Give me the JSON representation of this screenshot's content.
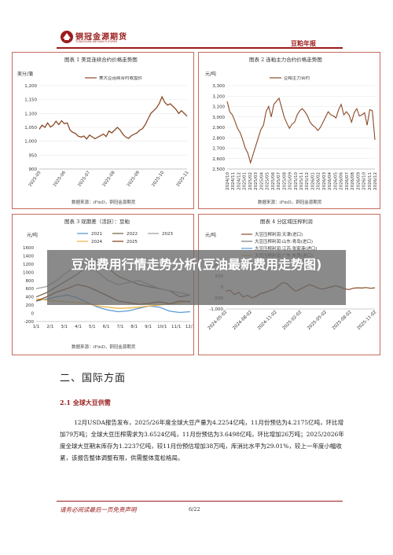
{
  "header": {
    "company_cn": "铜冠金源期货",
    "company_en": "TONGGUAN JINYUAN FUTURES",
    "report_type": "豆粕年报"
  },
  "overlay_title": "豆油费用行情走势分析(豆油最新费用走势图)",
  "colors": {
    "brand": "#9b1c1c",
    "series_brown": "#8a4a26",
    "panel_border": "#c46b5c"
  },
  "panels": [
    {
      "title": "图表 1 美豆连续合约价格走势图",
      "source": "数据来源：iFinD，铜冠金源期货",
      "unit": "美分/蒲"
    },
    {
      "title": "图表 2 连粕主力合约价格走势图",
      "source": "数据来源：iFinD，铜冠金源期货",
      "unit": "元/吨"
    },
    {
      "title": "图表 3 现期差（活跃）：豆粕",
      "source": "数据来源：iFinD，铜冠金源期货",
      "unit": "元/吨"
    },
    {
      "title": "图表 4 分区域压榨利润",
      "source": "数据来源：iFinD，铜冠金源期货",
      "unit": "元/吨"
    }
  ],
  "chart_data": [
    {
      "type": "line",
      "title": "图表 1 美豆连续合约价格走势图",
      "ylabel": "美分/蒲",
      "ylim": [
        900,
        1200
      ],
      "yticks": [
        "900",
        "950",
        "1,000",
        "1,050",
        "1,100",
        "1,150",
        "1,200"
      ],
      "xticks": [
        "2025-05",
        "2025-06",
        "2025-07",
        "2025-08",
        "2025-09",
        "2025-10",
        "2025-11"
      ],
      "series": [
        {
          "name": "美大豆连续合约收盘价",
          "color": "#8a4a26",
          "values": [
            1043,
            1058,
            1050,
            1066,
            1051,
            1058,
            1072,
            1060,
            1074,
            1063,
            1066,
            1041,
            1032,
            1028,
            1018,
            1015,
            1019,
            1008,
            1022,
            1016,
            1009,
            1015,
            1020,
            1026,
            1017,
            1037,
            1030,
            1040,
            1050,
            1040,
            1025,
            1015,
            1010,
            1020,
            1025,
            1030,
            1040,
            1045,
            1060,
            1080,
            1100,
            1110,
            1120,
            1135,
            1160,
            1140,
            1130,
            1135,
            1125,
            1115,
            1100,
            1110,
            1100,
            1090
          ]
        }
      ]
    },
    {
      "type": "line",
      "title": "图表 2 连粕主力合约价格走势图",
      "ylabel": "元/吨",
      "ylim": [
        2500,
        3300
      ],
      "yticks": [
        "2,500",
        "2,600",
        "2,700",
        "2,800",
        "2,900",
        "3,000",
        "3,100",
        "3,200",
        "3,300"
      ],
      "xticks": [
        "2024/10",
        "2024/11",
        "2024/12",
        "2025/01",
        "2025/02",
        "2025/03",
        "2025/04",
        "2025/05",
        "2025/06",
        "2025/07",
        "2025/08",
        "2025/09",
        "2025/10",
        "2025/11",
        "2025/12",
        "2026/01",
        "2026/02",
        "2026/03",
        "2026/04",
        "2026/05",
        "2026/06",
        "2026/07",
        "2026/08",
        "2026/09",
        "2026/10",
        "2026/11",
        "2026/12"
      ],
      "series": [
        {
          "name": "豆粕主力合约",
          "color": "#8a4a26",
          "values": [
            3150,
            3050,
            3020,
            2960,
            2890,
            2850,
            2780,
            2700,
            2650,
            2560,
            2640,
            2720,
            2800,
            2880,
            2920,
            3050,
            3100,
            3000,
            3120,
            3150,
            3180,
            3090,
            3000,
            2940,
            2890,
            2930,
            2950,
            3020,
            3060,
            3080,
            3050,
            3010,
            2950,
            2920,
            2900,
            2870,
            2900,
            2950,
            3000,
            3050,
            3020,
            3010,
            2990,
            3070,
            3120,
            3020,
            3050,
            3020,
            2950,
            3040,
            3080,
            3010,
            3020,
            3040,
            2920,
            3070,
            3060,
            2780
          ]
        }
      ]
    },
    {
      "type": "line",
      "title": "图表 3 现期差（活跃）：豆粕",
      "ylabel": "元/吨",
      "ylim": [
        -200,
        1600
      ],
      "yticks": [
        "-200",
        "0",
        "200",
        "400",
        "600",
        "800",
        "1000",
        "1200",
        "1400",
        "1600"
      ],
      "xticks": [
        "1/1",
        "2/1",
        "3/1",
        "4/1",
        "5/1",
        "6/1",
        "7/1",
        "8/1",
        "9/1",
        "10/1",
        "11/1",
        "12/1"
      ],
      "legend": [
        "2021",
        "2022",
        "2023",
        "2024",
        "2025"
      ],
      "series": [
        {
          "name": "2021",
          "color": "#5b9bd5",
          "values": [
            300,
            350,
            400,
            450,
            380,
            260,
            150,
            80,
            40,
            60,
            120,
            180,
            150,
            50,
            20,
            40
          ]
        },
        {
          "name": "2022",
          "color": "#7a6a4a",
          "values": [
            400,
            500,
            650,
            800,
            950,
            1150,
            1300,
            1100,
            900,
            800,
            700,
            650,
            600,
            550,
            400,
            450
          ]
        },
        {
          "name": "2023",
          "color": "#a5a5a5",
          "values": [
            600,
            650,
            800,
            1000,
            1150,
            1250,
            1000,
            800,
            700,
            750,
            800,
            700,
            600,
            550,
            500,
            450
          ]
        },
        {
          "name": "2024",
          "color": "#f0b84b",
          "values": [
            350,
            320,
            300,
            280,
            260,
            240,
            180,
            150,
            120,
            130,
            150,
            180,
            200,
            230,
            260,
            300
          ]
        },
        {
          "name": "2025",
          "color": "#8a4a26",
          "values": [
            300,
            400,
            520,
            600,
            700,
            650,
            540,
            420,
            300,
            260,
            220,
            240,
            280,
            230,
            300,
            280
          ]
        }
      ]
    },
    {
      "type": "line",
      "title": "图表 4 分区域压榨利润",
      "ylabel": "元/吨",
      "ylim": [
        -1000,
        1000
      ],
      "yticks": [
        "-1,000",
        "-500",
        "0",
        "500",
        "1,000"
      ],
      "xticks": [
        "2024-05-02",
        "2024-08-02",
        "2024-11-02",
        "2025-02-02",
        "2025-05-02",
        "2025-08-02",
        "2025-11-02"
      ],
      "legend": [
        "大豆压榨利润:天津(进口)",
        "大豆压榨利润:山东:青岛(进口)",
        "大豆压榨利润:江苏:张家港(进口)",
        "大豆压榨利润:广东:东莞(进口)"
      ],
      "series": [
        {
          "name": "大豆压榨利润:天津(进口)",
          "color": "#8a4a26",
          "values": [
            -200,
            -150,
            -350,
            -250,
            -450,
            -380,
            -500,
            -420,
            -300,
            -250,
            -180,
            -100,
            50,
            200,
            150,
            -50,
            -200,
            -100,
            0,
            100,
            50,
            -50,
            -100,
            -50,
            0,
            50,
            0,
            -80,
            -120,
            -60,
            -40,
            -50,
            -30,
            -60,
            -40
          ]
        }
      ]
    }
  ],
  "section": {
    "heading": "二、国际方面",
    "subheading": "2.1 全球大豆供需",
    "paragraph": "12月USDA报告发布，2025/26年度全球大豆产量为4.2254亿吨，11月份预估为4.2175亿吨，环比增加79万吨；全球大豆压榨需求为3.6524亿吨，11月份预估为3.6498亿吨，环比增加26万吨；2025/2026年度全球大豆期末库存为1.2237亿吨，较11月份预估增加38万吨，库消比水平为29.01%，较上一年度小幅收紧，该报告整体调整有限，供需整体宽松格局。"
  },
  "footer": {
    "disclaimer_link": "请务必阅读最后一页免责声明",
    "page": "6/22"
  }
}
